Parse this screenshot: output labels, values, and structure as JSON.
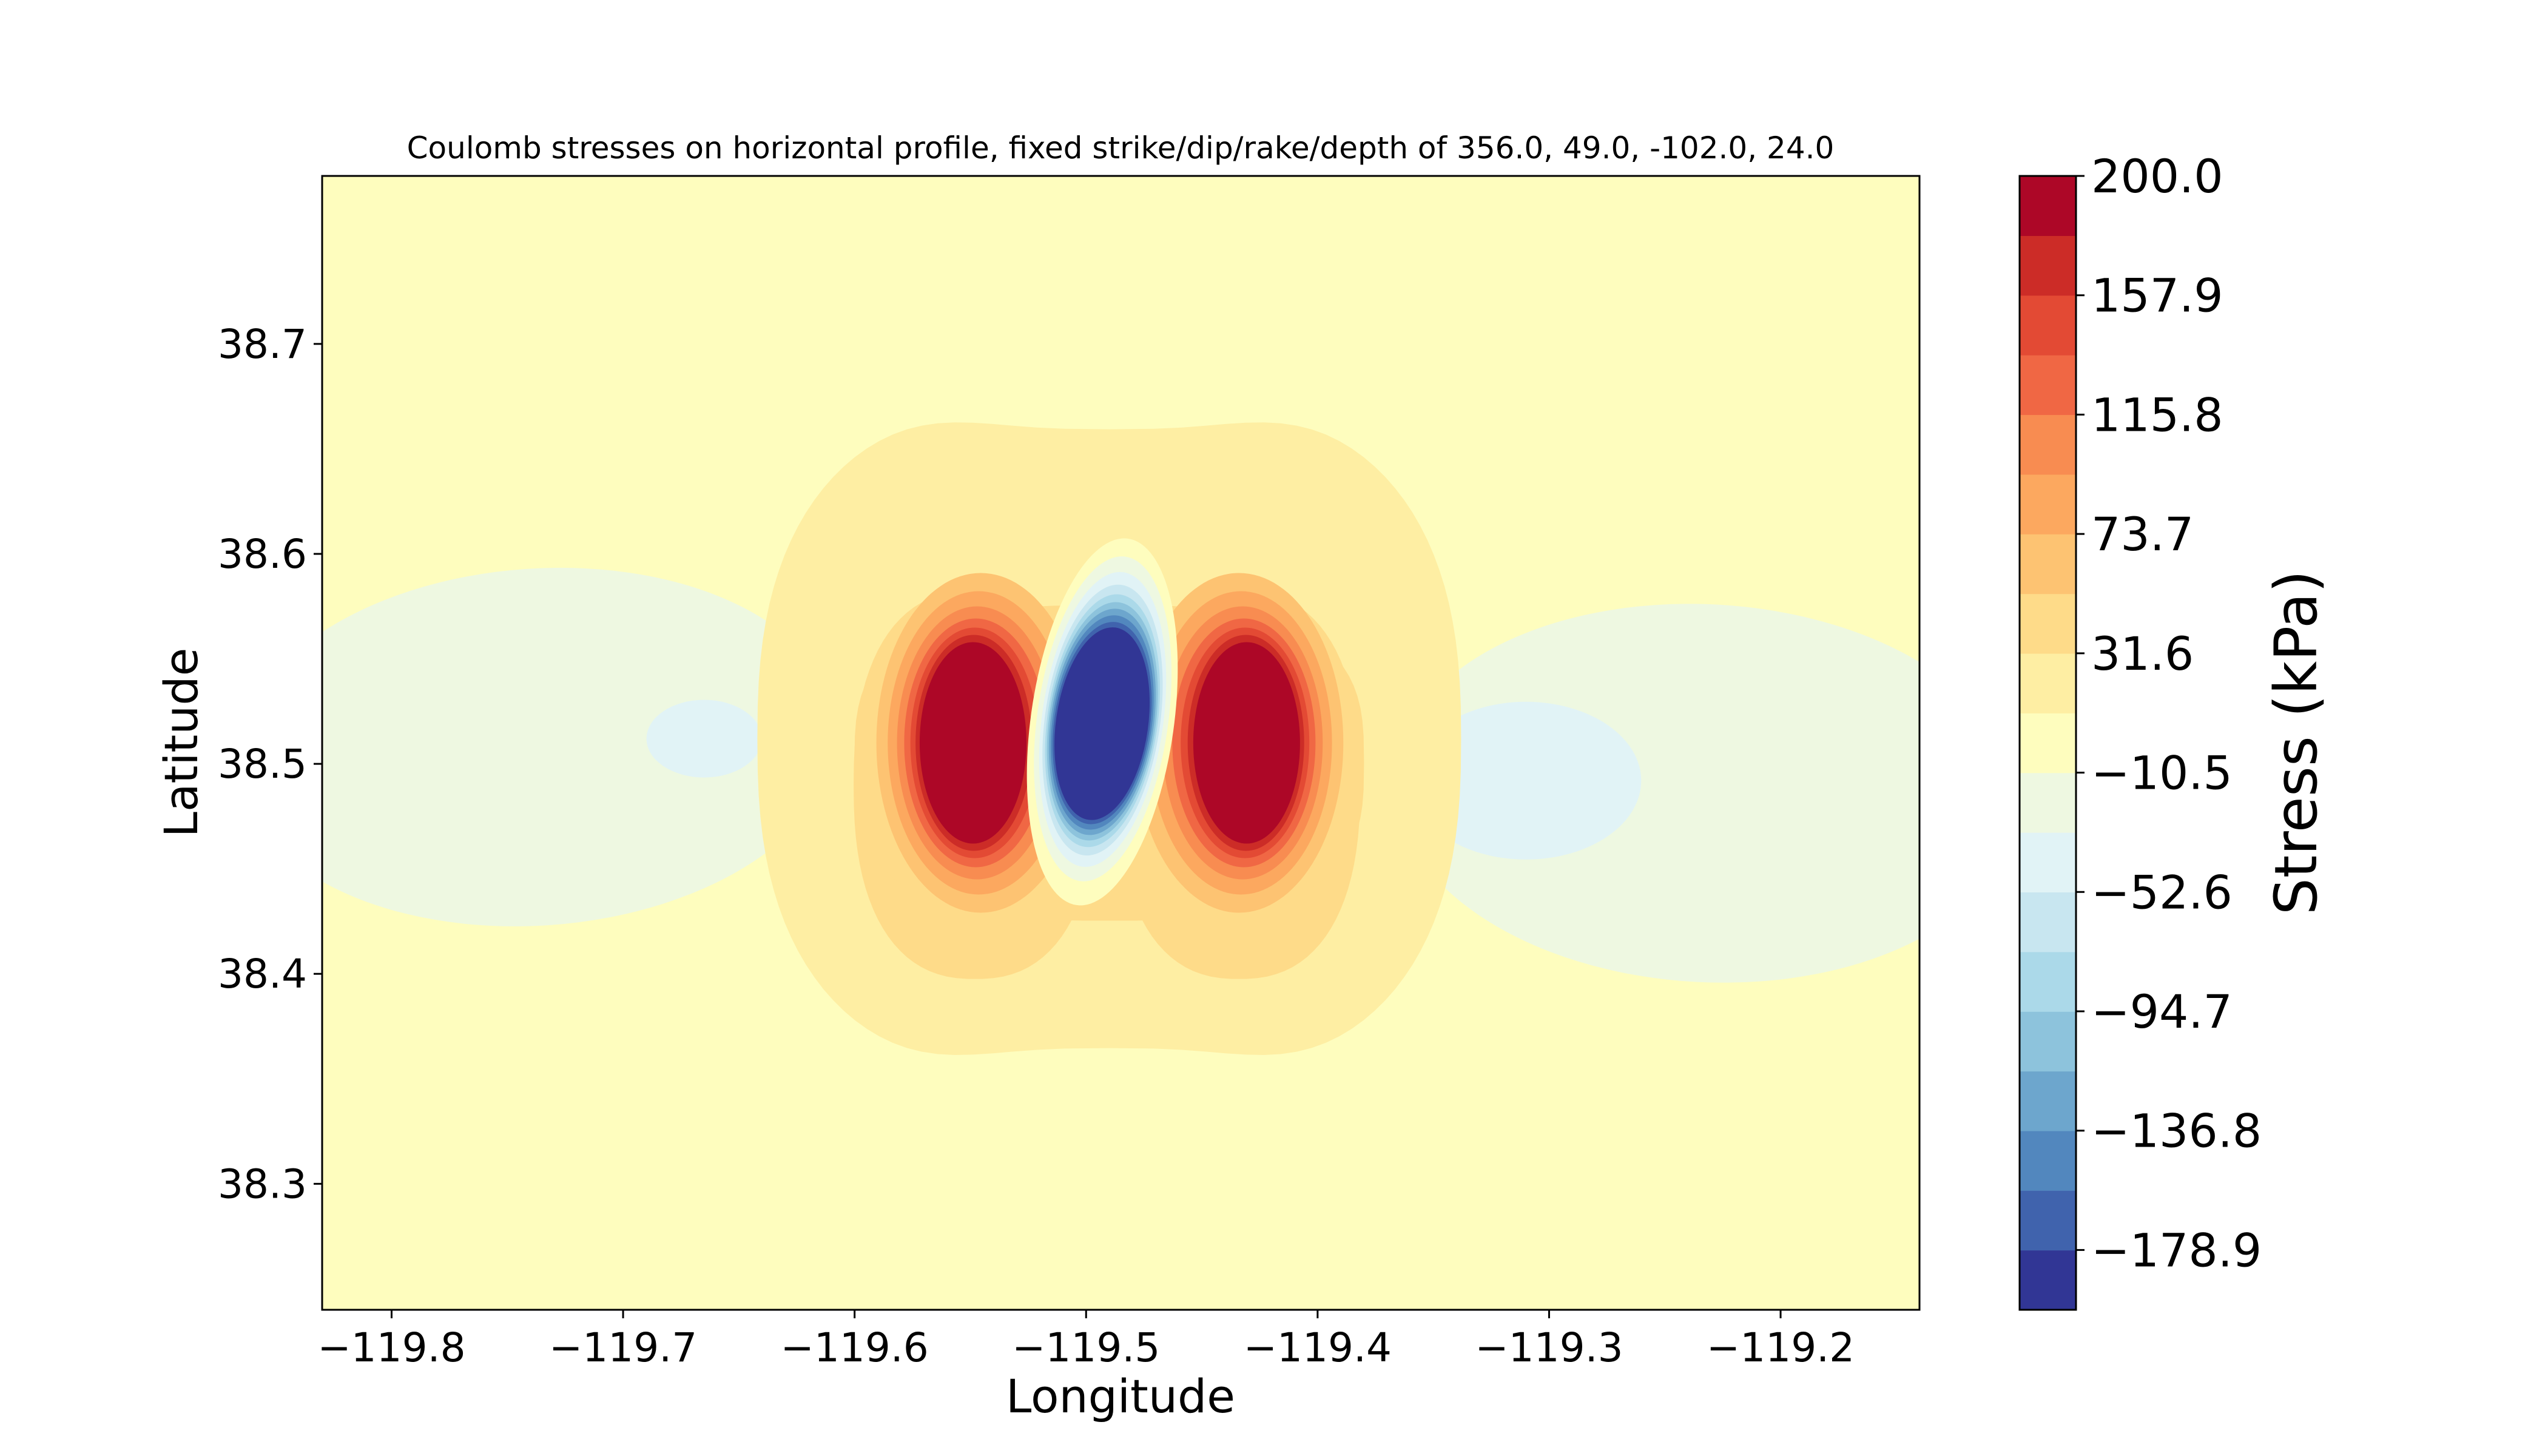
{
  "chart_data": {
    "type": "heatmap",
    "title": "Coulomb stresses on horizontal profile, fixed strike/dip/rake/depth of 356.0, 49.0, -102.0, 24.0",
    "xlabel": "Longitude",
    "ylabel": "Latitude",
    "xlim": [
      -119.83,
      -119.14
    ],
    "ylim": [
      38.24,
      38.78
    ],
    "x_ticks": [
      -119.8,
      -119.7,
      -119.6,
      -119.5,
      -119.4,
      -119.3,
      -119.2
    ],
    "x_tick_labels": [
      "−119.8",
      "−119.7",
      "−119.6",
      "−119.5",
      "−119.4",
      "−119.3",
      "−119.2"
    ],
    "y_ticks": [
      38.3,
      38.4,
      38.5,
      38.6,
      38.7
    ],
    "y_tick_labels": [
      "38.3",
      "38.4",
      "38.5",
      "38.6",
      "38.7"
    ],
    "colorbar": {
      "label": "Stress (kPa)",
      "vmin": -200.0,
      "vmax": 200.0,
      "ticks": [
        200.0,
        157.9,
        115.8,
        73.7,
        31.6,
        -10.5,
        -52.6,
        -94.7,
        -136.8,
        -178.9
      ],
      "tick_labels": [
        "200.0",
        "157.9",
        "115.8",
        "73.7",
        "31.6",
        "−10.5",
        "−52.6",
        "−94.7",
        "−136.8",
        "−178.9"
      ],
      "colors": [
        "#313695",
        "#4063ad",
        "#5287be",
        "#6da6cd",
        "#8dc3dc",
        "#abd9e9",
        "#c8e6f0",
        "#e1f3f6",
        "#eef8e1",
        "#fefdbe",
        "#feeea3",
        "#fedb89",
        "#fdc372",
        "#fca85f",
        "#f88c51",
        "#f06744",
        "#e34a34",
        "#cc2c27",
        "#ad0727"
      ]
    },
    "features": [
      {
        "kind": "negative_lobe",
        "center": [
          -119.737,
          38.508
        ],
        "radii": [
          0.13,
          0.085
        ],
        "levels": [
          -10.5,
          -31.6
        ]
      },
      {
        "kind": "negative_lobe",
        "center": [
          -119.232,
          38.486
        ],
        "radii": [
          0.135,
          0.09
        ],
        "levels": [
          -10.5,
          -31.6
        ]
      },
      {
        "kind": "positive_lobe",
        "center": [
          -119.545,
          38.51
        ],
        "peak": 200.0
      },
      {
        "kind": "positive_lobe",
        "center": [
          -119.435,
          38.51
        ],
        "peak": 200.0
      },
      {
        "kind": "negative_core",
        "center": [
          -119.493,
          38.52
        ],
        "peak": -200.0
      }
    ]
  }
}
